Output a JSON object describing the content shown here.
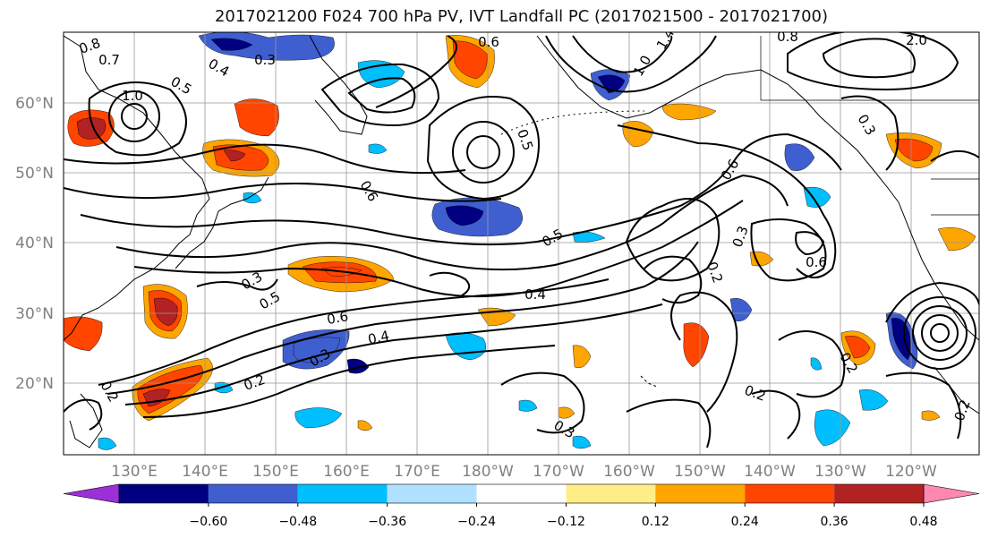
{
  "title": "2017021200 F024 700 hPa PV, IVT Landfall PC (2017021500 - 2017021700)",
  "lat_labels": [
    "60°N",
    "50°N",
    "40°N",
    "30°N",
    "20°N"
  ],
  "lon_labels": [
    "130°E",
    "140°E",
    "150°E",
    "160°E",
    "170°E",
    "180°W",
    "170°W",
    "160°W",
    "150°W",
    "140°W",
    "130°W",
    "120°W"
  ],
  "colorbar": {
    "ticks": [
      "−0.60",
      "−0.48",
      "−0.36",
      "−0.24",
      "−0.12",
      "0.12",
      "0.24",
      "0.36",
      "0.48",
      "0.60"
    ],
    "colors": [
      "#9b30d9",
      "#000080",
      "#3f5fd0",
      "#00bfff",
      "#b0e2ff",
      "#ffffff",
      "#ffee88",
      "#ffa500",
      "#ff4500",
      "#b22222",
      "#ff88b0"
    ]
  },
  "contour_labels": [
    "0.8",
    "0.7",
    "0.5",
    "1.0",
    "0.4",
    "0.3",
    "0.6",
    "0.3",
    "0.2",
    "0.5",
    "0.4",
    "0.6",
    "0.4",
    "0.3",
    "0.5",
    "0.6",
    "0.2",
    "0.3",
    "0.2",
    "1.4",
    "1.0",
    "0.6",
    "0.3",
    "0.2",
    "0.6",
    "0.2",
    "0.3",
    "0.5",
    "0.2",
    "2.0",
    "0.8"
  ],
  "shading_levels": {
    "pos": [
      0.36,
      0.48,
      0.24,
      0.36,
      0.48,
      0.36,
      0.24,
      0.36,
      0.24,
      0.36,
      0.36,
      0.24,
      0.36,
      0.24,
      0.24,
      0.36
    ],
    "neg": [
      -0.36,
      -0.48,
      -0.24,
      -0.36,
      -0.24,
      -0.36,
      -0.24,
      -0.24,
      -0.48,
      -0.36,
      -0.24,
      -0.24,
      -0.24,
      -0.36,
      -0.24
    ]
  }
}
